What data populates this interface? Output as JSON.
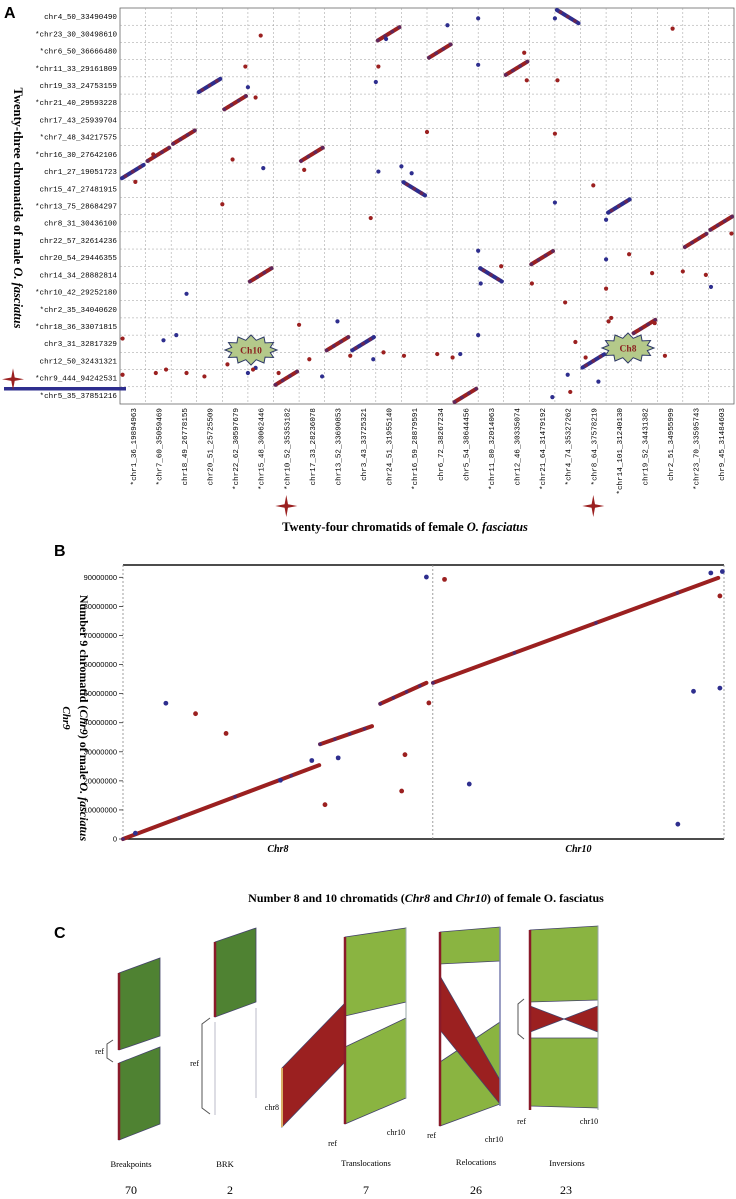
{
  "panel_labels": [
    "A",
    "B",
    "C"
  ],
  "chart_data": [
    {
      "type": "scatter",
      "panel": "A",
      "xlabel": "Twenty-four chromatids of female O. fasciatus",
      "xlabel_prefix": "Twenty-four chromatids of female ",
      "xlabel_species": "O. fasciatus",
      "ylabel": "Twenty-three chromatids of male O. fasciatus",
      "ylabel_prefix": "Twenty-three chromatids of male ",
      "ylabel_species": "O. fasciatus",
      "y_categories": [
        "chr4_50_33490490",
        "*chr23_30_30498610",
        "*chr6_50_36666480",
        "*chr11_33_29161809",
        "chr19_33_24753159",
        "*chr21_40_29593228",
        "chr17_43_25939704",
        "*chr7_48_34217575",
        "*chr16_30_27642106",
        "chr1_27_19051723",
        "chr15_47_27481915",
        "*chr13_75_28684297",
        "chr8_31_30436100",
        "chr22_57_32614236",
        "chr20_54_29446355",
        "chr14_34_28882814",
        "*chr10_42_29252180",
        "*chr2_35_34040620",
        "*chr18_36_33071815",
        "chr3_31_32817329",
        "chr12_50_32431321",
        "*chr9_444_94242531",
        "*chr5_35_37851216"
      ],
      "x_categories": [
        "*chr1_36_19894963",
        "*chr7_60_35059469",
        "chr18_49_26778155",
        "chr20_51_25725509",
        "*chr22_62_30597679",
        "*chr15_48_30062446",
        "*chr10_52_35353182",
        "chr17_33_28236078",
        "chr13_52_33690853",
        "chr3_43_33725321",
        "chr24_51_31955140",
        "*chr16_59_28879591",
        "chr6_72_38267234",
        "chr5_54_38644456",
        "*chr11_80_32014063",
        "chr12_46_30335074",
        "*chr21_64_31479192",
        "*chr4_74_35327262",
        "*chr8_64_37578219",
        "*chr14_101_31240130",
        "chr19_52_34431382",
        "chr2_51_34955999",
        "*chr23_70_33595743",
        "chr9_45_31484603"
      ],
      "callouts": [
        "Ch10",
        "Ch8"
      ],
      "highlighted_x": [
        "*chr10_52_35353182",
        "*chr8_64_37578219"
      ],
      "highlighted_y": [
        "*chr9_444_94242531"
      ],
      "segments": [
        {
          "x": 0,
          "y": 9,
          "dir": "+",
          "color": "blue"
        },
        {
          "x": 1,
          "y": 8,
          "dir": "+",
          "color": "red"
        },
        {
          "x": 2,
          "y": 7,
          "dir": "+",
          "color": "red"
        },
        {
          "x": 3,
          "y": 4,
          "dir": "+",
          "color": "blue"
        },
        {
          "x": 4,
          "y": 5,
          "dir": "+",
          "color": "red"
        },
        {
          "x": 5,
          "y": 15,
          "dir": "+",
          "color": "red"
        },
        {
          "x": 6,
          "y": 21,
          "dir": "+",
          "color": "red"
        },
        {
          "x": 7,
          "y": 8,
          "dir": "+",
          "color": "red"
        },
        {
          "x": 8,
          "y": 19,
          "dir": "+",
          "color": "red"
        },
        {
          "x": 9,
          "y": 19,
          "dir": "+",
          "color": "blue"
        },
        {
          "x": 10,
          "y": 1,
          "dir": "+",
          "color": "red"
        },
        {
          "x": 11,
          "y": 10,
          "dir": "-",
          "color": "blue"
        },
        {
          "x": 12,
          "y": 2,
          "dir": "+",
          "color": "red"
        },
        {
          "x": 13,
          "y": 22,
          "dir": "+",
          "color": "red"
        },
        {
          "x": 14,
          "y": 15,
          "dir": "-",
          "color": "blue"
        },
        {
          "x": 15,
          "y": 3,
          "dir": "+",
          "color": "red"
        },
        {
          "x": 16,
          "y": 14,
          "dir": "+",
          "color": "red"
        },
        {
          "x": 17,
          "y": 0,
          "dir": "-",
          "color": "blue"
        },
        {
          "x": 18,
          "y": 20,
          "dir": "+",
          "color": "blue"
        },
        {
          "x": 19,
          "y": 11,
          "dir": "+",
          "color": "blue"
        },
        {
          "x": 20,
          "y": 18,
          "dir": "+",
          "color": "red"
        },
        {
          "x": 22,
          "y": 13,
          "dir": "+",
          "color": "red"
        },
        {
          "x": 23,
          "y": 12,
          "dir": "+",
          "color": "red"
        }
      ]
    },
    {
      "type": "scatter",
      "panel": "B",
      "xlabel": "Number 8 and 10 chromatids (Chr8 and Chr10) of female O. fasciatus",
      "xlabel_parts": [
        "Number 8 and 10 chromatids (",
        "Chr8",
        " and ",
        "Chr10",
        ") of female O. fasciatus"
      ],
      "ylabel": "Number 9 chromatid (Chr9) of male O. fasciatus",
      "ylabel_parts": [
        "Number 9 chromatid (",
        "Chr9",
        ")  of male ",
        "O. fasciatus"
      ],
      "y_title": "Chr9",
      "x_regions": [
        "Chr8",
        "Chr10"
      ],
      "xlim": [
        0,
        72898000
      ],
      "x_boundary": 37578219,
      "ylim": [
        0,
        94242531
      ],
      "yticks": [
        0,
        10000000,
        20000000,
        30000000,
        40000000,
        50000000,
        60000000,
        70000000,
        80000000,
        90000000
      ],
      "ytick_labels": [
        "0",
        "10000000",
        "20000000",
        "30000000",
        "40000000",
        "50000000",
        "60000000",
        "70000000",
        "80000000",
        "90000000"
      ],
      "series": [
        {
          "name": "collinear segment 1",
          "points": [
            [
              0,
              0
            ],
            [
              23800000,
              25400000
            ]
          ]
        },
        {
          "name": "collinear segment 2",
          "points": [
            [
              23900000,
              32600000
            ],
            [
              30200000,
              38800000
            ]
          ]
        },
        {
          "name": "collinear segment 3",
          "points": [
            [
              31200000,
              46500000
            ],
            [
              36800000,
              53700000
            ]
          ]
        },
        {
          "name": "collinear segment 4",
          "points": [
            [
              37600000,
              53700000
            ],
            [
              72200000,
              89800000
            ]
          ]
        }
      ],
      "outliers": [
        {
          "x": 1500000,
          "y": 2000000,
          "color": "blue"
        },
        {
          "x": 5200000,
          "y": 46700000,
          "color": "blue"
        },
        {
          "x": 8800000,
          "y": 43100000,
          "color": "red"
        },
        {
          "x": 12500000,
          "y": 36300000,
          "color": "red"
        },
        {
          "x": 19100000,
          "y": 20200000,
          "color": "blue"
        },
        {
          "x": 22900000,
          "y": 27000000,
          "color": "blue"
        },
        {
          "x": 24500000,
          "y": 11800000,
          "color": "red"
        },
        {
          "x": 26100000,
          "y": 27900000,
          "color": "blue"
        },
        {
          "x": 33800000,
          "y": 16500000,
          "color": "red"
        },
        {
          "x": 34200000,
          "y": 29000000,
          "color": "red"
        },
        {
          "x": 36800000,
          "y": 90100000,
          "color": "blue"
        },
        {
          "x": 37100000,
          "y": 46800000,
          "color": "red"
        },
        {
          "x": 39000000,
          "y": 89300000,
          "color": "red"
        },
        {
          "x": 42000000,
          "y": 18900000,
          "color": "blue"
        },
        {
          "x": 67300000,
          "y": 5100000,
          "color": "blue"
        },
        {
          "x": 69200000,
          "y": 50800000,
          "color": "blue"
        },
        {
          "x": 71300000,
          "y": 91500000,
          "color": "blue"
        },
        {
          "x": 72400000,
          "y": 51900000,
          "color": "blue"
        },
        {
          "x": 72400000,
          "y": 83600000,
          "color": "red"
        },
        {
          "x": 72700000,
          "y": 92000000,
          "color": "blue"
        }
      ]
    }
  ],
  "panel_c": {
    "items": [
      {
        "name": "Breakpoints",
        "count": "70",
        "ref_label": "ref"
      },
      {
        "name": "BRK",
        "count": "2",
        "ref_label": "ref"
      },
      {
        "name": "Translocations",
        "count": "7",
        "ref_label": "ref",
        "chr8_label": "chr8",
        "chr10_label": "chr10"
      },
      {
        "name": "Relocations",
        "count": "26",
        "ref_label": "ref",
        "chr10_label": "chr10"
      },
      {
        "name": "Inversions",
        "count": "23",
        "ref_label": "ref",
        "chr10_label": "chr10"
      }
    ]
  },
  "colors": {
    "red": "#9b2020",
    "blue": "#2e2e8e",
    "light_green": "#8ab441",
    "dark_green": "#4f8232",
    "callout_fill": "#b4c98a",
    "grid": "#9a9a9a"
  }
}
